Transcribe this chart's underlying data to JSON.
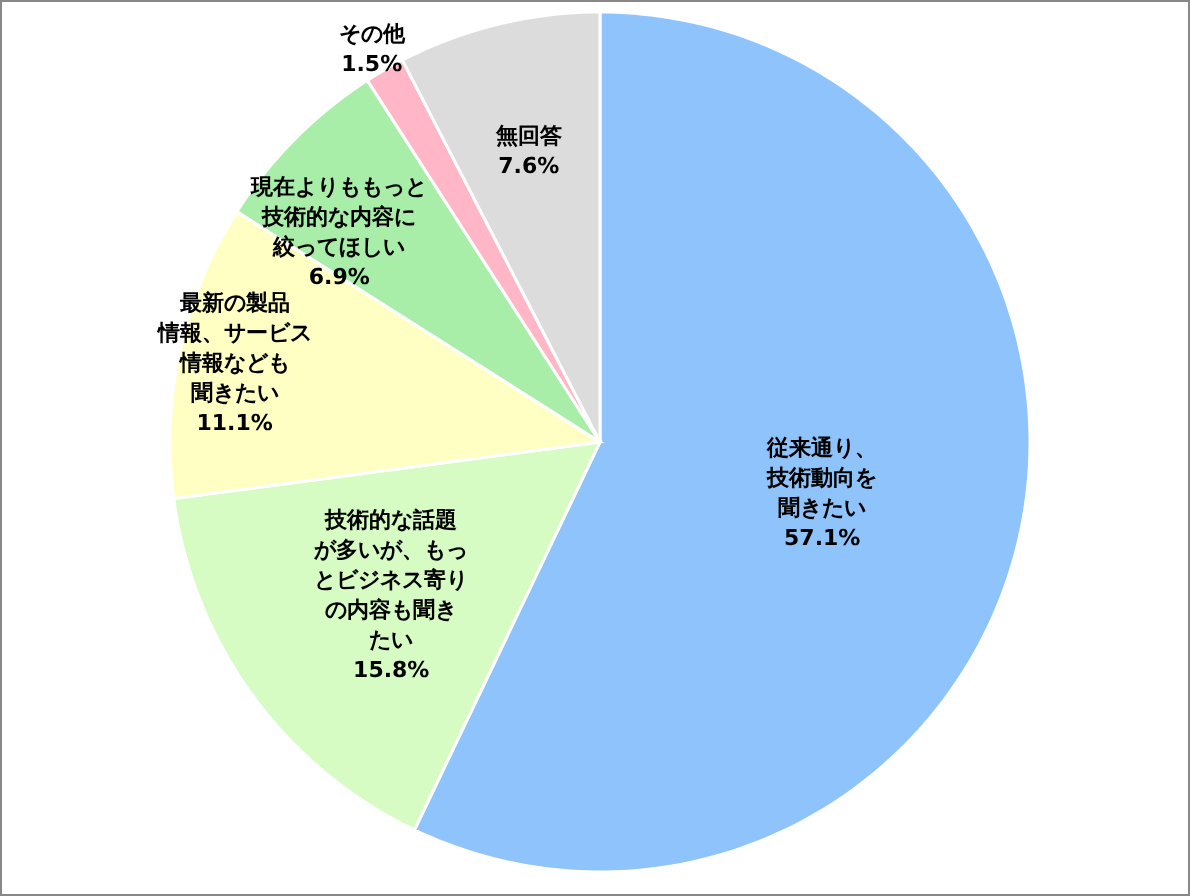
{
  "chart_data": {
    "type": "pie",
    "categories": [
      "従来通り、技術動向を聞きたい",
      "技術的な話題が多いが、もっとビジネス寄りの内容も聞きたい",
      "最新の製品情報、サービス情報なども聞きたい",
      "現在よりももっと技術的な内容に絞ってほしい",
      "その他",
      "無回答"
    ],
    "values": [
      57.1,
      15.8,
      11.1,
      6.9,
      1.5,
      7.6
    ],
    "colors": [
      "#8fc3fb",
      "#d6fcc4",
      "#ffffc4",
      "#a8eea8",
      "#ffb6c6",
      "#dcdcdc"
    ],
    "value_labels": [
      "57.1%",
      "15.8%",
      "11.1%",
      "6.9%",
      "1.5%",
      "7.6%"
    ]
  }
}
